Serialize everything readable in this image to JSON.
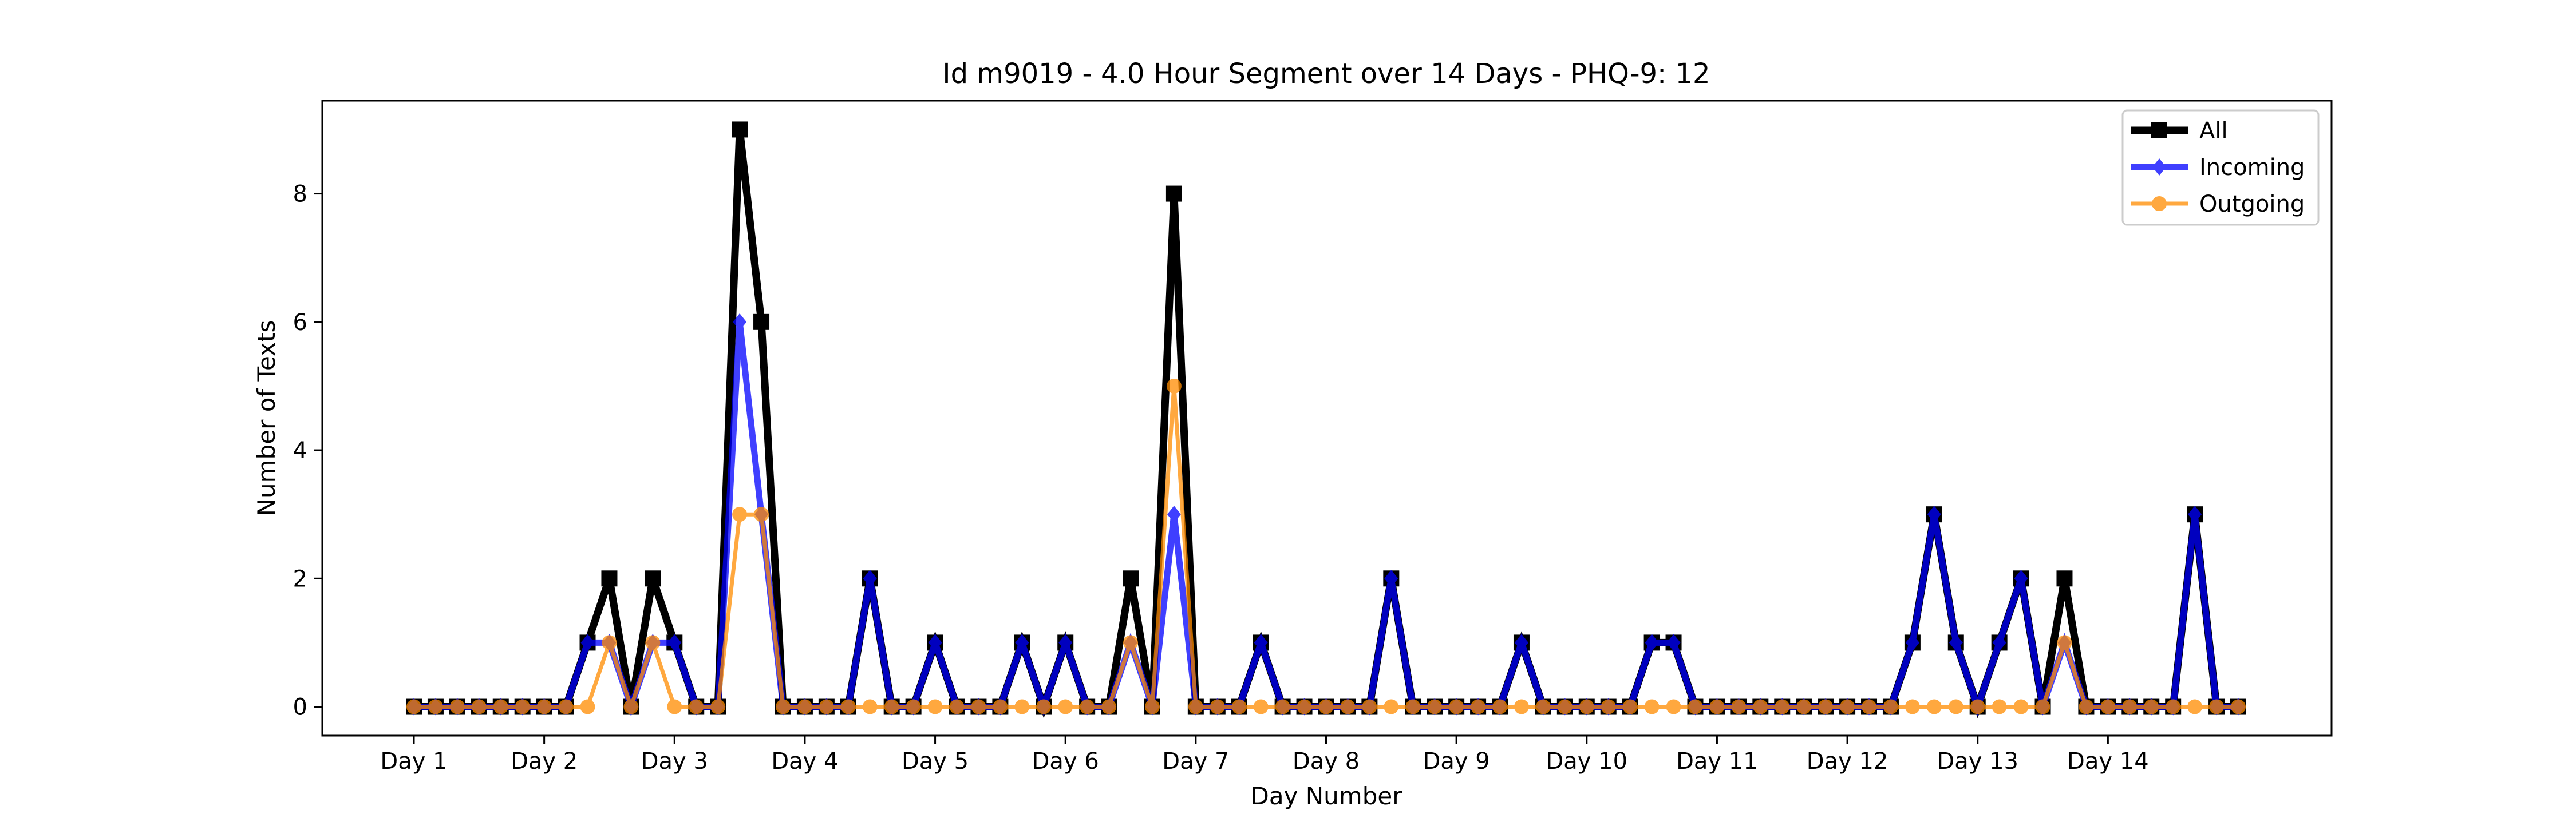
{
  "chart_data": {
    "type": "line",
    "title": "Id m9019 - 4.0 Hour Segment over 14 Days - PHQ-9: 12",
    "xlabel": "Day Number",
    "ylabel": "Number of Texts",
    "xlim": [
      -0.75,
      6.0
    ],
    "x_tick_labels": [
      "Day 1",
      "Day 2",
      "Day 3",
      "Day 4",
      "Day 5",
      "Day 6",
      "Day 7",
      "Day 8",
      "Day 9",
      "Day 10",
      "Day 11",
      "Day 12",
      "Day 13",
      "Day 14"
    ],
    "ylim": [
      -0.45,
      9.45
    ],
    "y_ticks": [
      0,
      2,
      4,
      6,
      8
    ],
    "grid": false,
    "legend_position": "top-right",
    "series": [
      {
        "name": "All",
        "color": "#000000",
        "marker": "square",
        "values": [
          0,
          0,
          0,
          0,
          0,
          0,
          0,
          0,
          1,
          2,
          0,
          2,
          1,
          0,
          0,
          9,
          6,
          0,
          0,
          0,
          0,
          2,
          0,
          0,
          1,
          0,
          0,
          0,
          1,
          0,
          1,
          0,
          0,
          2,
          0,
          8,
          0,
          0,
          0,
          1,
          0,
          0,
          0,
          0,
          0,
          2,
          0,
          0,
          0,
          0,
          0,
          1,
          0,
          0,
          0,
          0,
          0,
          1,
          1,
          0,
          0,
          0,
          0,
          0,
          0,
          0,
          0,
          0,
          0,
          1,
          3,
          1,
          0,
          1,
          2,
          0,
          2,
          0,
          0,
          0,
          0,
          0,
          3,
          0,
          0
        ]
      },
      {
        "name": "Incoming",
        "color": "#0000ff",
        "marker": "diamond",
        "values": [
          0,
          0,
          0,
          0,
          0,
          0,
          0,
          0,
          1,
          1,
          0,
          1,
          1,
          0,
          0,
          6,
          3,
          0,
          0,
          0,
          0,
          2,
          0,
          0,
          1,
          0,
          0,
          0,
          1,
          0,
          1,
          0,
          0,
          1,
          0,
          3,
          0,
          0,
          0,
          1,
          0,
          0,
          0,
          0,
          0,
          2,
          0,
          0,
          0,
          0,
          0,
          1,
          0,
          0,
          0,
          0,
          0,
          1,
          1,
          0,
          0,
          0,
          0,
          0,
          0,
          0,
          0,
          0,
          0,
          1,
          3,
          1,
          0,
          1,
          2,
          0,
          1,
          0,
          0,
          0,
          0,
          0,
          3,
          0,
          0
        ]
      },
      {
        "name": "Outgoing",
        "color": "#ff8c00",
        "marker": "circle",
        "values": [
          0,
          0,
          0,
          0,
          0,
          0,
          0,
          0,
          0,
          1,
          0,
          1,
          0,
          0,
          0,
          3,
          3,
          0,
          0,
          0,
          0,
          0,
          0,
          0,
          0,
          0,
          0,
          0,
          0,
          0,
          0,
          0,
          0,
          1,
          0,
          5,
          0,
          0,
          0,
          0,
          0,
          0,
          0,
          0,
          0,
          0,
          0,
          0,
          0,
          0,
          0,
          0,
          0,
          0,
          0,
          0,
          0,
          0,
          0,
          0,
          0,
          0,
          0,
          0,
          0,
          0,
          0,
          0,
          0,
          0,
          0,
          0,
          0,
          0,
          0,
          0,
          1,
          0,
          0,
          0,
          0,
          0,
          0,
          0,
          0
        ]
      }
    ]
  }
}
